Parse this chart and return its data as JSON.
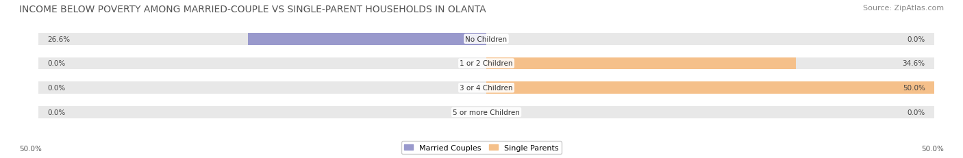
{
  "title": "INCOME BELOW POVERTY AMONG MARRIED-COUPLE VS SINGLE-PARENT HOUSEHOLDS IN OLANTA",
  "source": "Source: ZipAtlas.com",
  "categories": [
    "No Children",
    "1 or 2 Children",
    "3 or 4 Children",
    "5 or more Children"
  ],
  "married_values": [
    26.6,
    0.0,
    0.0,
    0.0
  ],
  "single_values": [
    0.0,
    34.6,
    50.0,
    0.0
  ],
  "married_color": "#9999cc",
  "single_color": "#f5c08a",
  "bar_bg_color": "#e8e8e8",
  "axis_limit": 50.0,
  "title_fontsize": 10,
  "source_fontsize": 8,
  "label_fontsize": 7.5,
  "category_fontsize": 7.5,
  "legend_fontsize": 8,
  "bar_height": 0.55,
  "background_color": "#ffffff"
}
